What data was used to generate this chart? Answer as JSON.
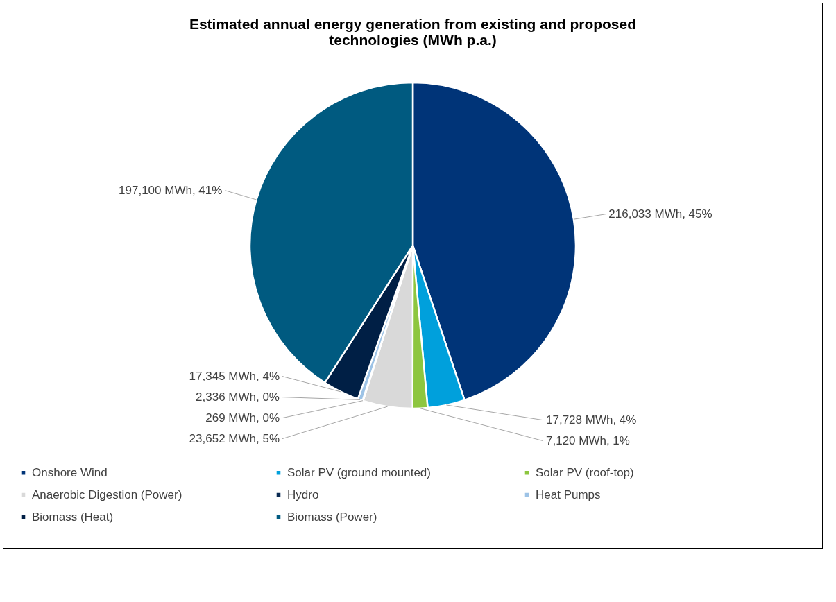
{
  "chart_data": {
    "type": "pie",
    "title": "Estimated annual energy generation from existing and proposed technologies (MWh p.a.)",
    "categories": [
      "Onshore Wind",
      "Solar PV (ground mounted)",
      "Solar PV (roof-top)",
      "Anaerobic Digestion (Power)",
      "Hydro",
      "Heat Pumps",
      "Biomass (Heat)",
      "Biomass (Power)"
    ],
    "values": [
      216033,
      17728,
      7120,
      23652,
      269,
      2336,
      17345,
      197100
    ],
    "value_labels": [
      "216,033 MWh, 45%",
      "17,728 MWh, 4%",
      "7,120 MWh, 1%",
      "23,652 MWh, 5%",
      "269 MWh, 0%",
      "2,336 MWh, 0%",
      "17,345 MWh, 4%",
      "197,100 MWh, 41%"
    ],
    "colors": [
      "#003478",
      "#00a0dc",
      "#8dc63f",
      "#d9d9d9",
      "#0a2a52",
      "#9dc3e6",
      "#001f45",
      "#005a80"
    ],
    "legend": "bottom"
  }
}
